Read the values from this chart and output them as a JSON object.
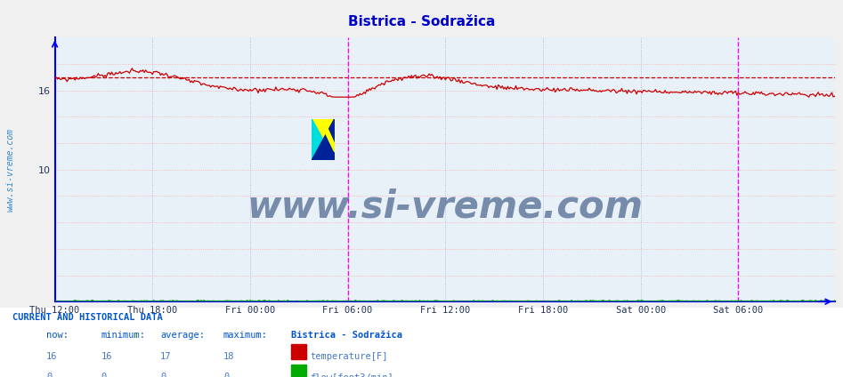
{
  "title": "Bistrica - Sodražica",
  "title_color": "#0000cc",
  "fig_bg_color": "#f0f0f0",
  "plot_bg_color": "#e8f0f8",
  "grid_color_pink": "#ffaaaa",
  "grid_color_blue": "#aaaadd",
  "axis_color": "#0000ff",
  "temp_color": "#cc0000",
  "flow_color": "#00aa00",
  "avg_line_color": "#cc0000",
  "avg_line_value": 17.0,
  "ylim": [
    0,
    20
  ],
  "yticks": [
    10,
    16
  ],
  "xticklabels": [
    "Thu 12:00",
    "Thu 18:00",
    "Fri 00:00",
    "Fri 06:00",
    "Fri 12:00",
    "Fri 18:00",
    "Sat 00:00",
    "Sat 06:00"
  ],
  "vline_color": "#ff00ff",
  "watermark": "www.si-vreme.com",
  "watermark_color": "#1a3a6a",
  "sidebar_text": "www.si-vreme.com",
  "sidebar_color": "#3388cc",
  "table_title": "CURRENT AND HISTORICAL DATA",
  "table_rows": [
    [
      "16",
      "16",
      "17",
      "18",
      "temperature[F]",
      "#cc0000"
    ],
    [
      "0",
      "0",
      "0",
      "0",
      "flow[foot3/min]",
      "#00aa00"
    ]
  ],
  "station_name": "Bistrica - Sodražica",
  "n_points": 576
}
